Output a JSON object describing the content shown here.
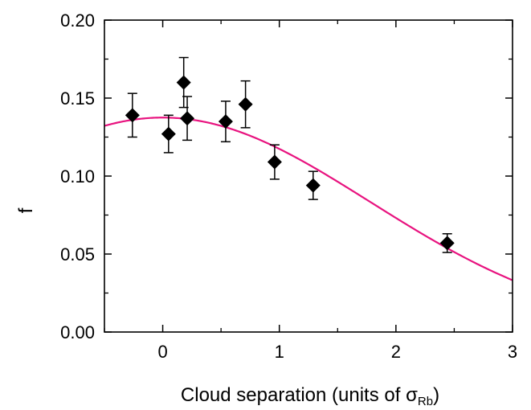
{
  "chart_data": {
    "type": "scatter",
    "xlabel": "Cloud separation (units of σ",
    "xlabel_subscript": "Rb",
    "xlabel_close": ")",
    "ylabel": "f",
    "xlim": [
      -0.5,
      3
    ],
    "ylim": [
      0,
      0.2
    ],
    "xticks": [
      0,
      1,
      2,
      3
    ],
    "xtick_labels": [
      "0",
      "1",
      "2",
      "3"
    ],
    "yticks": [
      0,
      0.05,
      0.1,
      0.15,
      0.2
    ],
    "ytick_labels": [
      "0.00",
      "0.05",
      "0.10",
      "0.15",
      "0.20"
    ],
    "grid": false,
    "marker": "filled-diamond",
    "colors": {
      "points": "#000000",
      "fit": "#e8137f"
    },
    "points": [
      {
        "x": -0.26,
        "y": 0.139,
        "yerr": 0.014
      },
      {
        "x": 0.05,
        "y": 0.127,
        "yerr": 0.012
      },
      {
        "x": 0.18,
        "y": 0.16,
        "yerr": 0.016
      },
      {
        "x": 0.21,
        "y": 0.137,
        "yerr": 0.014
      },
      {
        "x": 0.54,
        "y": 0.135,
        "yerr": 0.013
      },
      {
        "x": 0.71,
        "y": 0.146,
        "yerr": 0.015
      },
      {
        "x": 0.96,
        "y": 0.109,
        "yerr": 0.011
      },
      {
        "x": 1.29,
        "y": 0.094,
        "yerr": 0.009
      },
      {
        "x": 2.44,
        "y": 0.057,
        "yerr": 0.006
      }
    ],
    "fit": {
      "model": "gaussian",
      "amplitude": 0.1375,
      "center": 0.0,
      "width": 1.78
    }
  }
}
